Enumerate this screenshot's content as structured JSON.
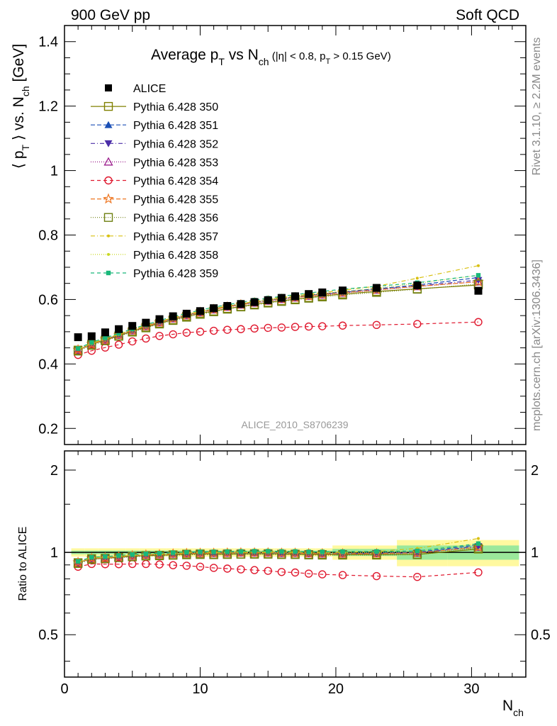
{
  "header": {
    "left": "900 GeV pp",
    "right": "Soft QCD"
  },
  "title": {
    "main": "Average p",
    "sub1": "T",
    "mid": " vs N",
    "sub2": "ch",
    "cuts": " (|η| < 0.8, p",
    "cuts_sub": "T",
    "cuts_end": " > 0.15 GeV)"
  },
  "side": {
    "rivet": "Rivet 3.1.10, ≥ 2.2M events",
    "mcplots": "mcplots.cern.ch [arXiv:1306.3436]"
  },
  "analysis_label": "ALICE_2010_S8706239",
  "axes": {
    "ylabel_main": "⟨ p",
    "ylabel_sub1": "T",
    "ylabel_mid": " ⟩ vs. N",
    "ylabel_sub2": "ch",
    "ylabel_end": " [GeV]",
    "ratio_ylabel": "Ratio to ALICE",
    "xlabel_main": "N",
    "xlabel_sub": "ch"
  },
  "chart_data": {
    "type": "scatter",
    "x_range": [
      0,
      34
    ],
    "y_range": [
      0.15,
      1.45
    ],
    "ratio_y_range": [
      0.35,
      2.35
    ],
    "ratio_y_log": true,
    "x_ticks": [
      0,
      10,
      20,
      30
    ],
    "y_ticks": [
      0.2,
      0.4,
      0.6,
      0.8,
      1.0,
      1.2,
      1.4
    ],
    "y_tick_labels": [
      "0.2",
      "0.4",
      "0.6",
      "0.8",
      "1",
      "1.2",
      "1.4"
    ],
    "ratio_y_ticks": [
      0.5,
      1,
      2
    ],
    "ratio_y_tick_labels": [
      "0.5",
      "1",
      "2"
    ],
    "legend_placement": "top-left",
    "x": [
      1,
      2,
      3,
      4,
      5,
      6,
      7,
      8,
      9,
      10,
      11,
      12,
      13,
      14,
      15,
      16,
      17,
      18,
      19,
      20.5,
      23,
      26,
      30.5
    ],
    "data": {
      "name": "ALICE",
      "values": [
        0.483,
        0.486,
        0.498,
        0.508,
        0.518,
        0.528,
        0.539,
        0.548,
        0.556,
        0.564,
        0.573,
        0.58,
        0.586,
        0.592,
        0.598,
        0.605,
        0.61,
        0.617,
        0.622,
        0.628,
        0.636,
        0.644,
        0.627
      ]
    },
    "series": [
      {
        "name": "Pythia 6.428 350",
        "color": "#808000",
        "marker": "open-square",
        "dash": "",
        "values": [
          0.443,
          0.461,
          0.474,
          0.487,
          0.501,
          0.514,
          0.526,
          0.537,
          0.548,
          0.557,
          0.564,
          0.572,
          0.578,
          0.585,
          0.591,
          0.596,
          0.601,
          0.606,
          0.611,
          0.617,
          0.625,
          0.633,
          0.645
        ]
      },
      {
        "name": "Pythia 6.428 351",
        "color": "#1a4fb5",
        "marker": "filled-triangle-up",
        "dash": "6,3",
        "values": [
          0.445,
          0.463,
          0.477,
          0.491,
          0.505,
          0.518,
          0.531,
          0.542,
          0.553,
          0.562,
          0.571,
          0.579,
          0.586,
          0.592,
          0.598,
          0.603,
          0.608,
          0.613,
          0.617,
          0.624,
          0.633,
          0.645,
          0.668
        ]
      },
      {
        "name": "Pythia 6.428 352",
        "color": "#4b2ea8",
        "marker": "filled-triangle-down",
        "dash": "6,3,1,3",
        "values": [
          0.444,
          0.462,
          0.476,
          0.49,
          0.504,
          0.517,
          0.53,
          0.541,
          0.552,
          0.561,
          0.57,
          0.578,
          0.585,
          0.591,
          0.597,
          0.602,
          0.607,
          0.612,
          0.616,
          0.622,
          0.631,
          0.642,
          0.66
        ]
      },
      {
        "name": "Pythia 6.428 353",
        "color": "#9b1d8c",
        "marker": "open-triangle-up",
        "dash": "1,2",
        "values": [
          0.443,
          0.461,
          0.475,
          0.489,
          0.503,
          0.516,
          0.528,
          0.54,
          0.55,
          0.559,
          0.568,
          0.576,
          0.583,
          0.589,
          0.595,
          0.6,
          0.605,
          0.61,
          0.614,
          0.62,
          0.629,
          0.64,
          0.655
        ]
      },
      {
        "name": "Pythia 6.428 354",
        "color": "#e0182e",
        "marker": "open-circle",
        "dash": "5,4",
        "values": [
          0.428,
          0.441,
          0.451,
          0.46,
          0.47,
          0.479,
          0.487,
          0.492,
          0.497,
          0.5,
          0.503,
          0.506,
          0.508,
          0.51,
          0.512,
          0.513,
          0.515,
          0.516,
          0.517,
          0.519,
          0.521,
          0.524,
          0.53
        ]
      },
      {
        "name": "Pythia 6.428 355",
        "color": "#ee7722",
        "marker": "open-star",
        "dash": "6,3",
        "values": [
          0.444,
          0.462,
          0.476,
          0.49,
          0.504,
          0.517,
          0.529,
          0.541,
          0.551,
          0.56,
          0.569,
          0.577,
          0.584,
          0.59,
          0.596,
          0.601,
          0.606,
          0.611,
          0.615,
          0.621,
          0.63,
          0.641,
          0.655
        ]
      },
      {
        "name": "Pythia 6.428 356",
        "color": "#6e7f10",
        "marker": "open-square",
        "dash": "1,2",
        "values": [
          0.44,
          0.458,
          0.472,
          0.486,
          0.499,
          0.512,
          0.524,
          0.535,
          0.545,
          0.554,
          0.562,
          0.57,
          0.577,
          0.583,
          0.589,
          0.594,
          0.599,
          0.604,
          0.608,
          0.614,
          0.622,
          0.632,
          0.648
        ]
      },
      {
        "name": "Pythia 6.428 357",
        "color": "#d8c010",
        "marker": "small-dot",
        "dash": "6,3,1,3",
        "values": [
          0.446,
          0.464,
          0.478,
          0.492,
          0.506,
          0.519,
          0.532,
          0.543,
          0.554,
          0.563,
          0.572,
          0.58,
          0.587,
          0.594,
          0.6,
          0.606,
          0.611,
          0.616,
          0.621,
          0.629,
          0.641,
          0.666,
          0.705
        ]
      },
      {
        "name": "Pythia 6.428 358",
        "color": "#c8d820",
        "marker": "small-dot",
        "dash": "1,2",
        "values": [
          0.445,
          0.463,
          0.477,
          0.491,
          0.505,
          0.518,
          0.531,
          0.542,
          0.553,
          0.562,
          0.571,
          0.579,
          0.586,
          0.592,
          0.598,
          0.604,
          0.609,
          0.614,
          0.618,
          0.625,
          0.635,
          0.65,
          0.675
        ]
      },
      {
        "name": "Pythia 6.428 359",
        "color": "#19b87a",
        "marker": "filled-square-small",
        "dash": "5,4",
        "values": [
          0.448,
          0.467,
          0.481,
          0.495,
          0.509,
          0.522,
          0.535,
          0.547,
          0.557,
          0.567,
          0.576,
          0.584,
          0.591,
          0.598,
          0.604,
          0.61,
          0.615,
          0.62,
          0.625,
          0.632,
          0.641,
          0.652,
          0.675
        ]
      }
    ]
  }
}
